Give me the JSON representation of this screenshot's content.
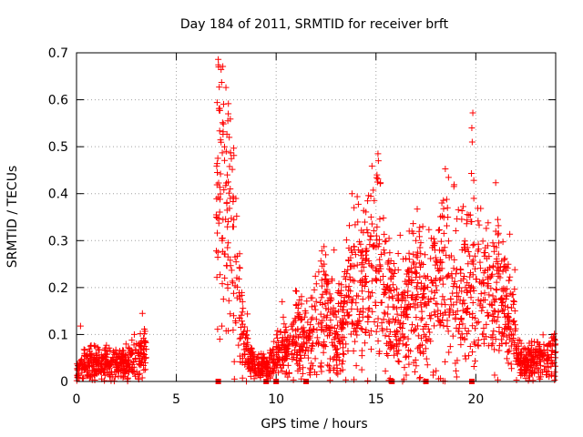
{
  "chart_data": {
    "type": "scatter",
    "title": "Day 184 of 2011, SRMTID for receiver brft",
    "xlabel": "GPS time / hours",
    "ylabel": "SRMTID / TECUs",
    "xlim": [
      0,
      24
    ],
    "ylim": [
      0,
      0.7
    ],
    "xticks": [
      0,
      5,
      10,
      15,
      20
    ],
    "yticks": [
      0,
      0.1,
      0.2,
      0.3,
      0.4,
      0.5,
      0.6,
      0.7
    ],
    "grid": true,
    "marker": "plus",
    "color": "#ff0000",
    "segments": [
      {
        "range": [
          0,
          3.5
        ],
        "bands": [
          [
            0,
            0.02
          ],
          [
            0.5,
            0.045
          ],
          [
            1.0,
            0.035
          ],
          [
            1.5,
            0.04
          ],
          [
            2.0,
            0.035
          ],
          [
            2.5,
            0.04
          ],
          [
            3.0,
            0.05
          ],
          [
            3.4,
            0.06
          ]
        ]
      },
      {
        "range": [
          7.0,
          8.6
        ],
        "bands": [
          [
            7.0,
            0.35
          ],
          [
            7.2,
            0.45
          ],
          [
            7.5,
            0.3
          ],
          [
            7.7,
            0.4
          ],
          [
            8.0,
            0.2
          ],
          [
            8.4,
            0.08
          ]
        ]
      },
      {
        "range": [
          8.6,
          10.5
        ],
        "bands": [
          [
            8.6,
            0.04
          ],
          [
            9.0,
            0.03
          ],
          [
            9.5,
            0.03
          ],
          [
            10.0,
            0.05
          ],
          [
            10.5,
            0.07
          ]
        ]
      },
      {
        "range": [
          10.5,
          13.5
        ],
        "bands": [
          [
            10.5,
            0.07
          ],
          [
            11.0,
            0.1
          ],
          [
            11.5,
            0.09
          ],
          [
            12.0,
            0.12
          ],
          [
            12.5,
            0.15
          ],
          [
            13.0,
            0.1
          ],
          [
            13.5,
            0.15
          ]
        ]
      },
      {
        "range": [
          13.5,
          16.0
        ],
        "bands": [
          [
            13.5,
            0.17
          ],
          [
            14.0,
            0.2
          ],
          [
            14.5,
            0.2
          ],
          [
            15.0,
            0.25
          ],
          [
            15.5,
            0.2
          ],
          [
            16.0,
            0.15
          ]
        ]
      },
      {
        "range": [
          16.0,
          20.0
        ],
        "bands": [
          [
            16.0,
            0.15
          ],
          [
            16.5,
            0.14
          ],
          [
            17.0,
            0.2
          ],
          [
            17.5,
            0.15
          ],
          [
            18.0,
            0.2
          ],
          [
            18.5,
            0.22
          ],
          [
            19.0,
            0.2
          ],
          [
            19.5,
            0.22
          ],
          [
            20.0,
            0.2
          ]
        ]
      },
      {
        "range": [
          20.0,
          22.0
        ],
        "bands": [
          [
            20.0,
            0.2
          ],
          [
            20.5,
            0.18
          ],
          [
            21.0,
            0.2
          ],
          [
            21.5,
            0.15
          ],
          [
            22.0,
            0.12
          ]
        ]
      },
      {
        "range": [
          22.0,
          24.0
        ],
        "bands": [
          [
            22.0,
            0.05
          ],
          [
            22.5,
            0.04
          ],
          [
            23.0,
            0.045
          ],
          [
            23.5,
            0.05
          ],
          [
            24.0,
            0.06
          ]
        ]
      }
    ],
    "points": [
      {
        "x": 7.1,
        "y": 0.686
      },
      {
        "x": 7.12,
        "y": 0.67
      },
      {
        "x": 7.15,
        "y": 0.627
      },
      {
        "x": 7.6,
        "y": 0.57
      },
      {
        "x": 7.58,
        "y": 0.555
      },
      {
        "x": 7.65,
        "y": 0.52
      },
      {
        "x": 7.5,
        "y": 0.49
      },
      {
        "x": 7.55,
        "y": 0.44
      },
      {
        "x": 7.05,
        "y": 0.445
      },
      {
        "x": 7.7,
        "y": 0.41
      },
      {
        "x": 7.0,
        "y": 0.35
      },
      {
        "x": 7.3,
        "y": 0.3
      },
      {
        "x": 15.1,
        "y": 0.485
      },
      {
        "x": 15.12,
        "y": 0.47
      },
      {
        "x": 15.05,
        "y": 0.44
      },
      {
        "x": 19.85,
        "y": 0.572
      },
      {
        "x": 19.8,
        "y": 0.54
      },
      {
        "x": 19.82,
        "y": 0.51
      },
      {
        "x": 19.78,
        "y": 0.443
      },
      {
        "x": 19.9,
        "y": 0.39
      },
      {
        "x": 13.8,
        "y": 0.4
      },
      {
        "x": 13.9,
        "y": 0.37
      },
      {
        "x": 18.3,
        "y": 0.38
      },
      {
        "x": 18.6,
        "y": 0.35
      },
      {
        "x": 21.1,
        "y": 0.345
      },
      {
        "x": 21.0,
        "y": 0.32
      },
      {
        "x": 16.8,
        "y": 0.32
      },
      {
        "x": 17.0,
        "y": 0.3
      },
      {
        "x": 12.9,
        "y": 0.28
      },
      {
        "x": 12.4,
        "y": 0.25
      },
      {
        "x": 3.3,
        "y": 0.145
      },
      {
        "x": 0.2,
        "y": 0.118
      },
      {
        "x": 10.3,
        "y": 0.17
      }
    ],
    "zero_points": [
      7.1,
      9.5,
      10.0,
      11.5,
      15.8,
      17.5,
      19.8
    ]
  }
}
